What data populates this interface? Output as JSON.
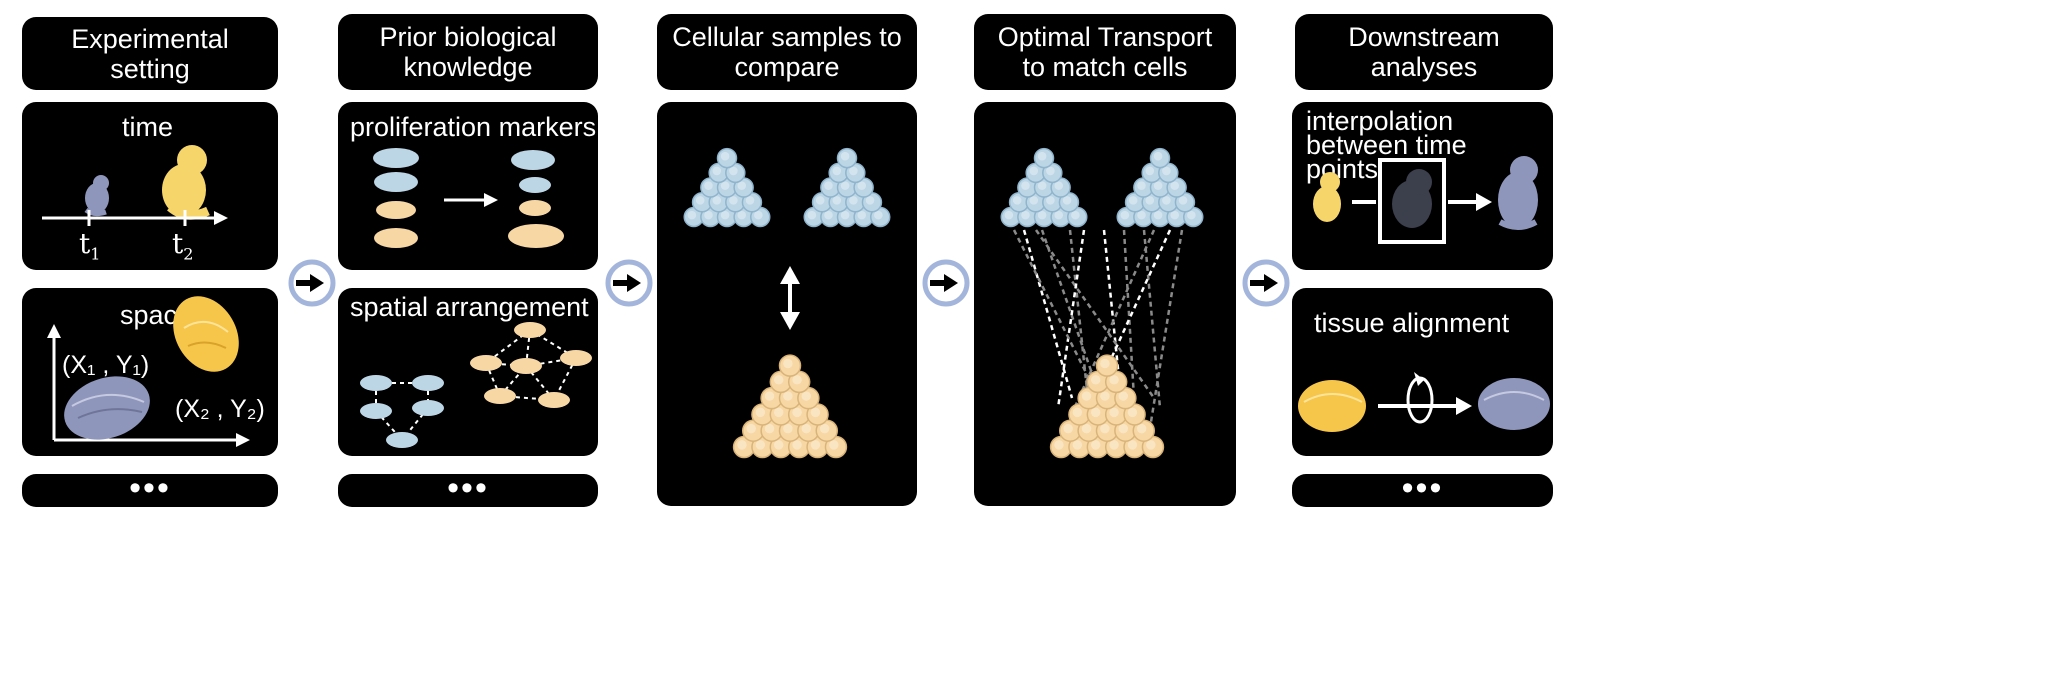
{
  "columns": [
    {
      "header": "Experimental setting",
      "panels": [
        {
          "title": "time",
          "t1": "t",
          "t1_sub": "1",
          "t2": "t",
          "t2_sub": "2"
        },
        {
          "title": "space",
          "coord1": "(X₁ , Y₁)",
          "coord2": "(X₂ , Y₂)"
        }
      ],
      "more": "•••"
    },
    {
      "header": "Prior biological knowledge",
      "panels": [
        {
          "title": "proliferation markers"
        },
        {
          "title": "spatial arrangement"
        }
      ],
      "more": "•••"
    },
    {
      "header": "Cellular samples to compare"
    },
    {
      "header": "Optimal Transport to match cells"
    },
    {
      "header": "Downstream analyses",
      "panels": [
        {
          "title": "interpolation between time points"
        },
        {
          "title": "tissue alignment"
        }
      ],
      "more": "•••"
    }
  ],
  "colors": {
    "panel": "#000000",
    "blue_cell": "#bcd6e6",
    "peach_cell": "#f7d7a4",
    "yellow_tissue": "#f6c64a",
    "grey_tissue": "#8f96bc",
    "connector_ring": "#a4b5dc"
  },
  "icons": [
    "connector-arrow-icon",
    "embryo-icon",
    "tissue-icon",
    "rotate-icon"
  ]
}
